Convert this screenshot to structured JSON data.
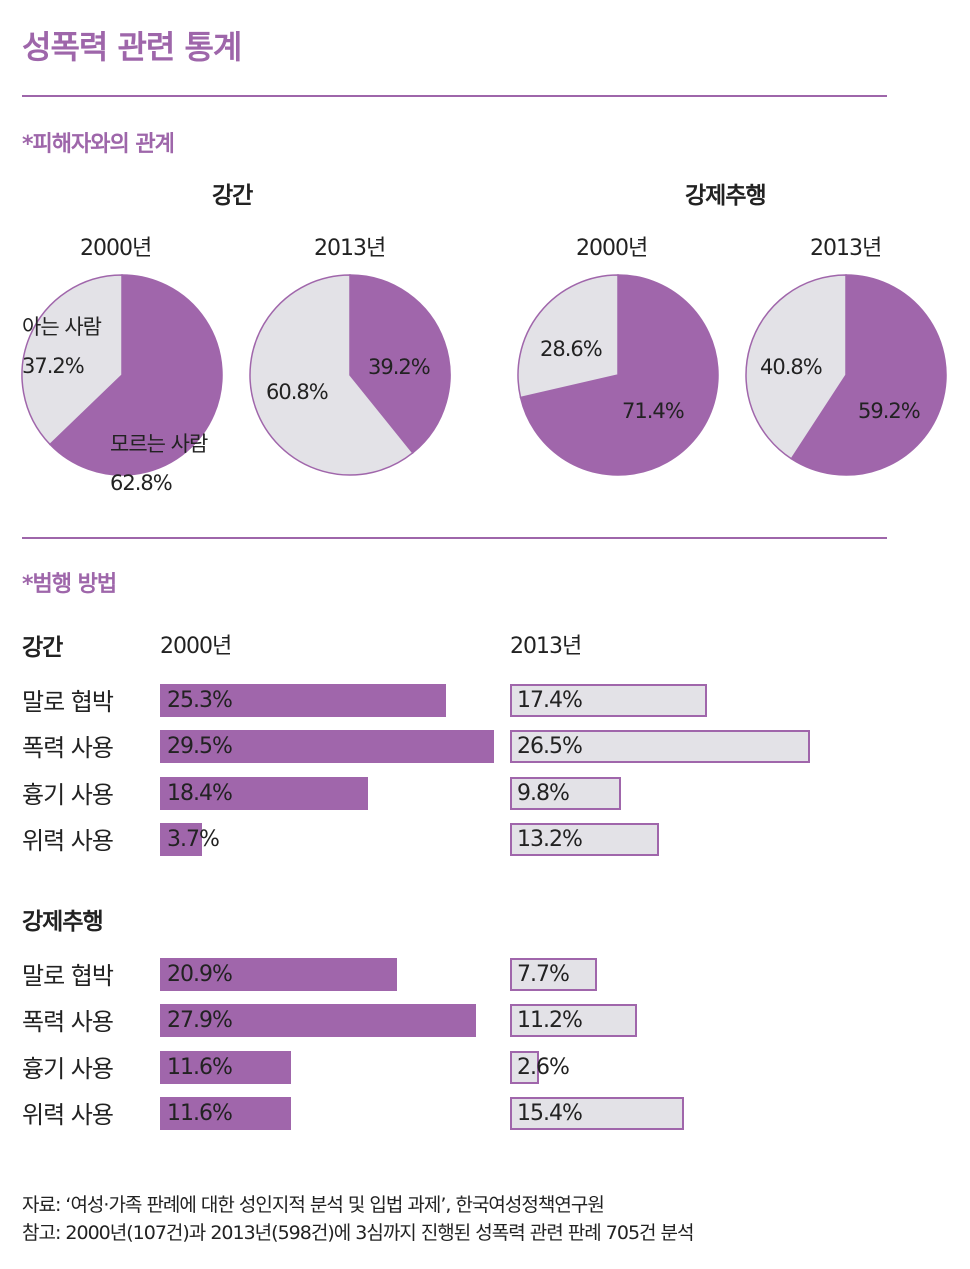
{
  "title": "성폭력 관련 통계",
  "section1": "*피해자와의 관계",
  "section2": "*범행 방법",
  "colors": {
    "accent": "#a066ab",
    "grey": "#e3e2e7"
  },
  "chart_data": [
    {
      "type": "pie",
      "title": "피해자와의 관계",
      "groups": [
        {
          "name": "강간",
          "pies": [
            {
              "year": "2000년",
              "slices": [
                {
                  "label": "모르는 사람",
                  "value": 62.8,
                  "text": "62.8%"
                },
                {
                  "label": "아는 사람",
                  "value": 37.2,
                  "text": "37.2%"
                }
              ]
            },
            {
              "year": "2013년",
              "slices": [
                {
                  "label": "모르는 사람",
                  "value": 39.2,
                  "text": "39.2%"
                },
                {
                  "label": "아는 사람",
                  "value": 60.8,
                  "text": "60.8%"
                }
              ]
            }
          ]
        },
        {
          "name": "강제추행",
          "pies": [
            {
              "year": "2000년",
              "slices": [
                {
                  "label": "모르는 사람",
                  "value": 71.4,
                  "text": "71.4%"
                },
                {
                  "label": "아는 사람",
                  "value": 28.6,
                  "text": "28.6%"
                }
              ]
            },
            {
              "year": "2013년",
              "slices": [
                {
                  "label": "모르는 사람",
                  "value": 59.2,
                  "text": "59.2%"
                },
                {
                  "label": "아는 사람",
                  "value": 40.8,
                  "text": "40.8%"
                }
              ]
            }
          ]
        }
      ]
    },
    {
      "type": "bar",
      "title": "범행 방법",
      "years": [
        "2000년",
        "2013년"
      ],
      "groups": [
        {
          "name": "강간",
          "categories": [
            "말로 협박",
            "폭력 사용",
            "흉기 사용",
            "위력 사용"
          ],
          "series": [
            {
              "name": "2000년",
              "values": [
                25.3,
                29.5,
                18.4,
                3.7
              ],
              "labels": [
                "25.3%",
                "29.5%",
                "18.4%",
                "3.7%"
              ]
            },
            {
              "name": "2013년",
              "values": [
                17.4,
                26.5,
                9.8,
                13.2
              ],
              "labels": [
                "17.4%",
                "26.5%",
                "9.8%",
                "13.2%"
              ]
            }
          ]
        },
        {
          "name": "강제추행",
          "categories": [
            "말로 협박",
            "폭력 사용",
            "흉기 사용",
            "위력 사용"
          ],
          "series": [
            {
              "name": "2000년",
              "values": [
                20.9,
                27.9,
                11.6,
                11.6
              ],
              "labels": [
                "20.9%",
                "27.9%",
                "11.6%",
                "11.6%"
              ]
            },
            {
              "name": "2013년",
              "values": [
                7.7,
                11.2,
                2.6,
                15.4
              ],
              "labels": [
                "7.7%",
                "11.2%",
                "2.6%",
                "15.4%"
              ]
            }
          ]
        }
      ]
    }
  ],
  "notes": {
    "source": "자료: ‘여성·가족 판례에 대한 성인지적 분석 및 입법 과제’, 한국여성정책연구원",
    "reference": "참고: 2000년(107건)과 2013년(598건)에 3심까지 진행된 성폭력 관련 판례 705건 분석"
  }
}
